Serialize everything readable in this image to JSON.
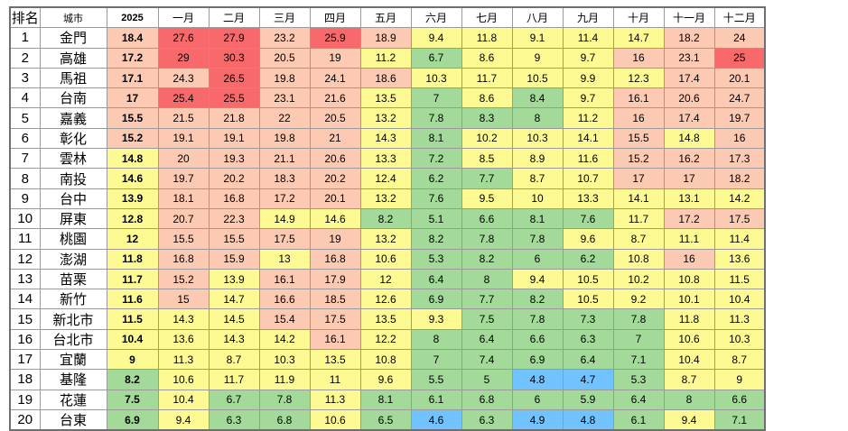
{
  "colors": {
    "red": "#f8696b",
    "salmon": "#fcc9b2",
    "yellow": "#fdfa94",
    "green": "#a3da99",
    "blue": "#71c2ff",
    "white": "#ffffff"
  },
  "chart_data": {
    "type": "table",
    "headers": [
      "排名",
      "城市",
      "2025",
      "一月",
      "二月",
      "三月",
      "四月",
      "五月",
      "六月",
      "七月",
      "八月",
      "九月",
      "十月",
      "十一月",
      "十二月"
    ],
    "rows": [
      {
        "rank": "1",
        "city": "金門",
        "year": "18.4",
        "months": [
          "27.6",
          "27.9",
          "23.2",
          "25.9",
          "18.9",
          "9.4",
          "11.8",
          "9.1",
          "11.4",
          "14.7",
          "18.2",
          "24"
        ]
      },
      {
        "rank": "2",
        "city": "高雄",
        "year": "17.2",
        "months": [
          "29",
          "30.3",
          "20.5",
          "19",
          "11.2",
          "6.7",
          "8.6",
          "9",
          "9.7",
          "16",
          "23.1",
          "25"
        ]
      },
      {
        "rank": "3",
        "city": "馬祖",
        "year": "17.1",
        "months": [
          "24.3",
          "26.5",
          "19.8",
          "24.1",
          "18.6",
          "10.3",
          "11.7",
          "10.5",
          "9.9",
          "12.3",
          "17.4",
          "20.1"
        ]
      },
      {
        "rank": "4",
        "city": "台南",
        "year": "17",
        "months": [
          "25.4",
          "25.5",
          "23.1",
          "21.6",
          "13.5",
          "7",
          "8.6",
          "8.4",
          "9.7",
          "16.1",
          "20.6",
          "24.7"
        ]
      },
      {
        "rank": "5",
        "city": "嘉義",
        "year": "15.5",
        "months": [
          "21.5",
          "21.8",
          "22",
          "20.5",
          "13.2",
          "7.8",
          "8.3",
          "8",
          "11.2",
          "16",
          "17.4",
          "19.7"
        ]
      },
      {
        "rank": "6",
        "city": "彰化",
        "year": "15.2",
        "months": [
          "19.1",
          "19.1",
          "19.8",
          "21",
          "14.3",
          "8.1",
          "10.2",
          "10.3",
          "14.1",
          "15.5",
          "14.8",
          "16"
        ]
      },
      {
        "rank": "7",
        "city": "雲林",
        "year": "14.8",
        "months": [
          "20",
          "19.3",
          "21.1",
          "20.6",
          "13.3",
          "7.2",
          "8.5",
          "8.9",
          "11.6",
          "15.2",
          "16.2",
          "17.3"
        ]
      },
      {
        "rank": "8",
        "city": "南投",
        "year": "14.6",
        "months": [
          "19.7",
          "20.2",
          "18.3",
          "20.2",
          "12.4",
          "6.2",
          "7.7",
          "8.7",
          "10.7",
          "17",
          "17",
          "18.2"
        ]
      },
      {
        "rank": "9",
        "city": "台中",
        "year": "13.9",
        "months": [
          "18.1",
          "16.8",
          "17.2",
          "20.1",
          "13.2",
          "7.6",
          "9.5",
          "10",
          "13.3",
          "14.1",
          "13.1",
          "14.2"
        ]
      },
      {
        "rank": "10",
        "city": "屏東",
        "year": "12.8",
        "months": [
          "20.7",
          "22.3",
          "14.9",
          "14.6",
          "8.2",
          "5.1",
          "6.6",
          "8.1",
          "7.6",
          "11.7",
          "17.2",
          "17.5"
        ]
      },
      {
        "rank": "11",
        "city": "桃園",
        "year": "12",
        "months": [
          "15.5",
          "15.5",
          "17.5",
          "19",
          "13.2",
          "8.2",
          "7.8",
          "7.8",
          "9.6",
          "8.7",
          "11.1",
          "11.4"
        ]
      },
      {
        "rank": "12",
        "city": "澎湖",
        "year": "11.8",
        "months": [
          "16.8",
          "15.9",
          "13",
          "16.8",
          "10.6",
          "5.3",
          "8.2",
          "6",
          "6.2",
          "10.8",
          "16",
          "13.6"
        ]
      },
      {
        "rank": "13",
        "city": "苗栗",
        "year": "11.7",
        "months": [
          "15.2",
          "13.9",
          "16.1",
          "17.9",
          "12",
          "6.4",
          "8",
          "9.4",
          "10.5",
          "10.2",
          "10.8",
          "11.5"
        ]
      },
      {
        "rank": "14",
        "city": "新竹",
        "year": "11.6",
        "months": [
          "15",
          "14.7",
          "16.6",
          "18.5",
          "12.6",
          "6.9",
          "7.7",
          "8.2",
          "10.5",
          "9.2",
          "10.1",
          "10.4"
        ]
      },
      {
        "rank": "15",
        "city": "新北市",
        "year": "11.5",
        "months": [
          "14.3",
          "14.5",
          "15.4",
          "17.5",
          "13.5",
          "9.3",
          "7.5",
          "7.8",
          "7.3",
          "7.8",
          "11.8",
          "11.3"
        ]
      },
      {
        "rank": "16",
        "city": "台北市",
        "year": "10.4",
        "months": [
          "13.6",
          "14.3",
          "14.2",
          "16.1",
          "12.2",
          "8",
          "6.4",
          "6.6",
          "6.3",
          "7",
          "10.6",
          "10.3"
        ]
      },
      {
        "rank": "17",
        "city": "宜蘭",
        "year": "9",
        "months": [
          "11.3",
          "8.7",
          "10.3",
          "13.5",
          "10.8",
          "7",
          "7.4",
          "6.9",
          "6.4",
          "7.1",
          "10.4",
          "8.7"
        ]
      },
      {
        "rank": "18",
        "city": "基隆",
        "year": "8.2",
        "months": [
          "10.6",
          "11.7",
          "11.9",
          "11",
          "9.6",
          "5.5",
          "5",
          "4.8",
          "4.7",
          "5.3",
          "8.7",
          "9"
        ]
      },
      {
        "rank": "19",
        "city": "花蓮",
        "year": "7.5",
        "months": [
          "10.4",
          "6.7",
          "7.8",
          "11.3",
          "8.1",
          "6.1",
          "6.8",
          "6",
          "5.9",
          "6.4",
          "8",
          "6.6"
        ]
      },
      {
        "rank": "20",
        "city": "台東",
        "year": "6.9",
        "months": [
          "9.4",
          "6.3",
          "6.8",
          "10.6",
          "6.5",
          "4.6",
          "6.3",
          "4.9",
          "4.8",
          "6.1",
          "9.4",
          "7.1"
        ]
      }
    ]
  }
}
